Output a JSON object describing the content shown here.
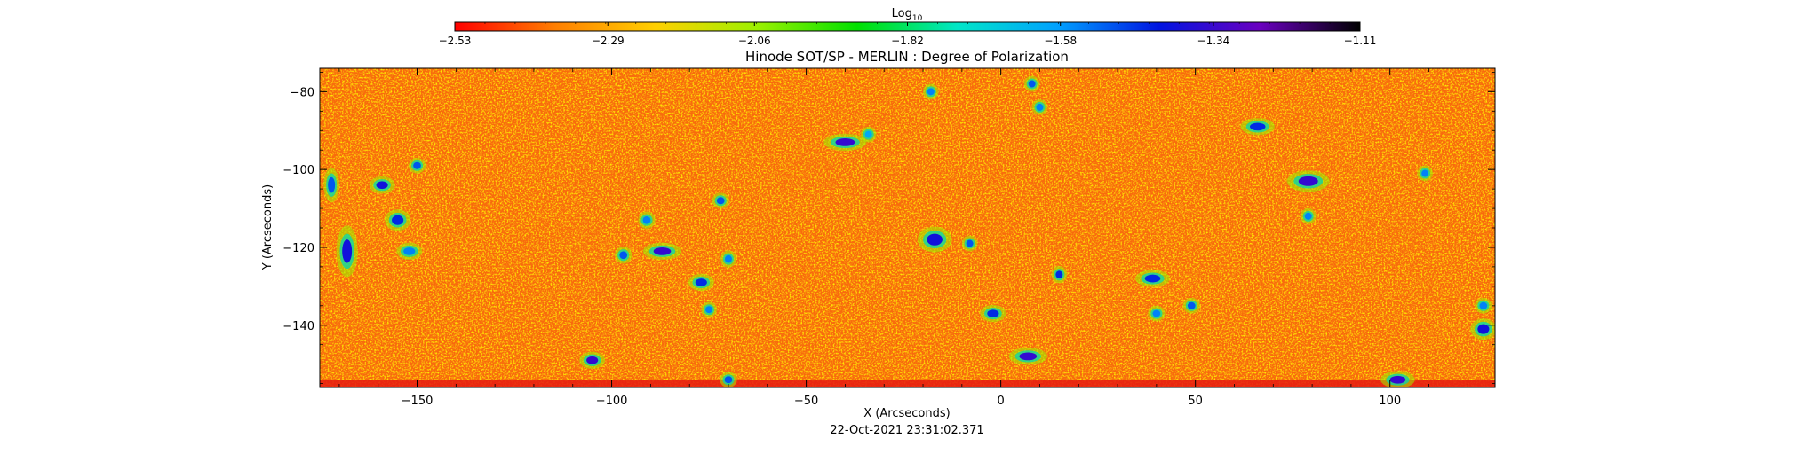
{
  "chart_data": {
    "type": "heatmap",
    "title": "Hinode SOT/SP - MERLIN : Degree of Polarization",
    "xlabel": "X (Arcseconds)",
    "ylabel": "Y (Arcseconds)",
    "xlim": [
      -175,
      127
    ],
    "ylim": [
      -156,
      -74
    ],
    "x_ticks": [
      -150,
      -100,
      -50,
      0,
      50,
      100
    ],
    "x_tick_labels": [
      "−150",
      "−100",
      "−50",
      "0",
      "50",
      "100"
    ],
    "y_ticks": [
      -80,
      -100,
      -120,
      -140
    ],
    "y_tick_labels": [
      "−80",
      "−100",
      "−120",
      "−140"
    ],
    "grid": false,
    "colorbar": {
      "label_base": "Log",
      "label_sub": "10",
      "range": [
        -2.53,
        -1.11
      ],
      "tick_values": [
        -2.53,
        -2.29,
        -2.06,
        -1.82,
        -1.58,
        -1.34,
        -1.11
      ],
      "tick_labels": [
        "−2.53",
        "−2.29",
        "−2.06",
        "−1.82",
        "−1.58",
        "−1.34",
        "−1.11"
      ],
      "colormap": [
        "#ff0000",
        "#ff7f00",
        "#ffd000",
        "#9cf000",
        "#00e000",
        "#00e6c8",
        "#00a0ff",
        "#0014e0",
        "#6a00c0",
        "#000000"
      ]
    },
    "background_value_range": [
      -2.45,
      -2.25
    ],
    "high_polarization_patches": [
      {
        "x": -172,
        "y": -104,
        "w": 1.5,
        "h": 4,
        "value": -1.5
      },
      {
        "x": -168,
        "y": -121,
        "w": 2.5,
        "h": 6,
        "value": -1.4
      },
      {
        "x": -159,
        "y": -104,
        "w": 3,
        "h": 2,
        "value": -1.4
      },
      {
        "x": -155,
        "y": -113,
        "w": 3,
        "h": 2.5,
        "value": -1.45
      },
      {
        "x": -152,
        "y": -121,
        "w": 3,
        "h": 2,
        "value": -1.55
      },
      {
        "x": -150,
        "y": -99,
        "w": 2,
        "h": 1.5,
        "value": -1.5
      },
      {
        "x": -105,
        "y": -149,
        "w": 3,
        "h": 2,
        "value": -1.35
      },
      {
        "x": -97,
        "y": -122,
        "w": 2,
        "h": 2,
        "value": -1.5
      },
      {
        "x": -91,
        "y": -113,
        "w": 2,
        "h": 2,
        "value": -1.55
      },
      {
        "x": -87,
        "y": -121,
        "w": 4.5,
        "h": 2,
        "value": -1.35
      },
      {
        "x": -77,
        "y": -129,
        "w": 3,
        "h": 2,
        "value": -1.45
      },
      {
        "x": -75,
        "y": -136,
        "w": 1.5,
        "h": 1.5,
        "value": -1.55
      },
      {
        "x": -72,
        "y": -108,
        "w": 2,
        "h": 1.5,
        "value": -1.5
      },
      {
        "x": -70,
        "y": -123,
        "w": 1.5,
        "h": 2,
        "value": -1.55
      },
      {
        "x": -70,
        "y": -154,
        "w": 2,
        "h": 1.5,
        "value": -1.5
      },
      {
        "x": -40,
        "y": -93,
        "w": 5,
        "h": 2,
        "value": -1.35
      },
      {
        "x": -34,
        "y": -91,
        "w": 1.5,
        "h": 1.5,
        "value": -1.6
      },
      {
        "x": -18,
        "y": -80,
        "w": 1.5,
        "h": 1.5,
        "value": -1.55
      },
      {
        "x": -17,
        "y": -118,
        "w": 4,
        "h": 3,
        "value": -1.4
      },
      {
        "x": -8,
        "y": -119,
        "w": 1.5,
        "h": 1.5,
        "value": -1.5
      },
      {
        "x": -2,
        "y": -137,
        "w": 3,
        "h": 2,
        "value": -1.45
      },
      {
        "x": 7,
        "y": -148,
        "w": 4.5,
        "h": 2,
        "value": -1.35
      },
      {
        "x": 8,
        "y": -78,
        "w": 1.5,
        "h": 1.5,
        "value": -1.5
      },
      {
        "x": 10,
        "y": -84,
        "w": 1.5,
        "h": 1.5,
        "value": -1.55
      },
      {
        "x": 15,
        "y": -127,
        "w": 1.5,
        "h": 2,
        "value": -1.45
      },
      {
        "x": 39,
        "y": -128,
        "w": 4,
        "h": 2,
        "value": -1.45
      },
      {
        "x": 40,
        "y": -137,
        "w": 2,
        "h": 1.5,
        "value": -1.55
      },
      {
        "x": 49,
        "y": -135,
        "w": 2,
        "h": 1.5,
        "value": -1.5
      },
      {
        "x": 66,
        "y": -89,
        "w": 4,
        "h": 2,
        "value": -1.45
      },
      {
        "x": 79,
        "y": -103,
        "w": 5,
        "h": 2.5,
        "value": -1.35
      },
      {
        "x": 79,
        "y": -112,
        "w": 1.5,
        "h": 1.5,
        "value": -1.55
      },
      {
        "x": 102,
        "y": -154,
        "w": 4,
        "h": 2,
        "value": -1.35
      },
      {
        "x": 109,
        "y": -101,
        "w": 1.5,
        "h": 1.5,
        "value": -1.55
      },
      {
        "x": 124,
        "y": -141,
        "w": 3,
        "h": 2.5,
        "value": -1.4
      },
      {
        "x": 124,
        "y": -135,
        "w": 2,
        "h": 1.5,
        "value": -1.55
      }
    ],
    "timestamp": "22-Oct-2021 23:31:02.371"
  }
}
